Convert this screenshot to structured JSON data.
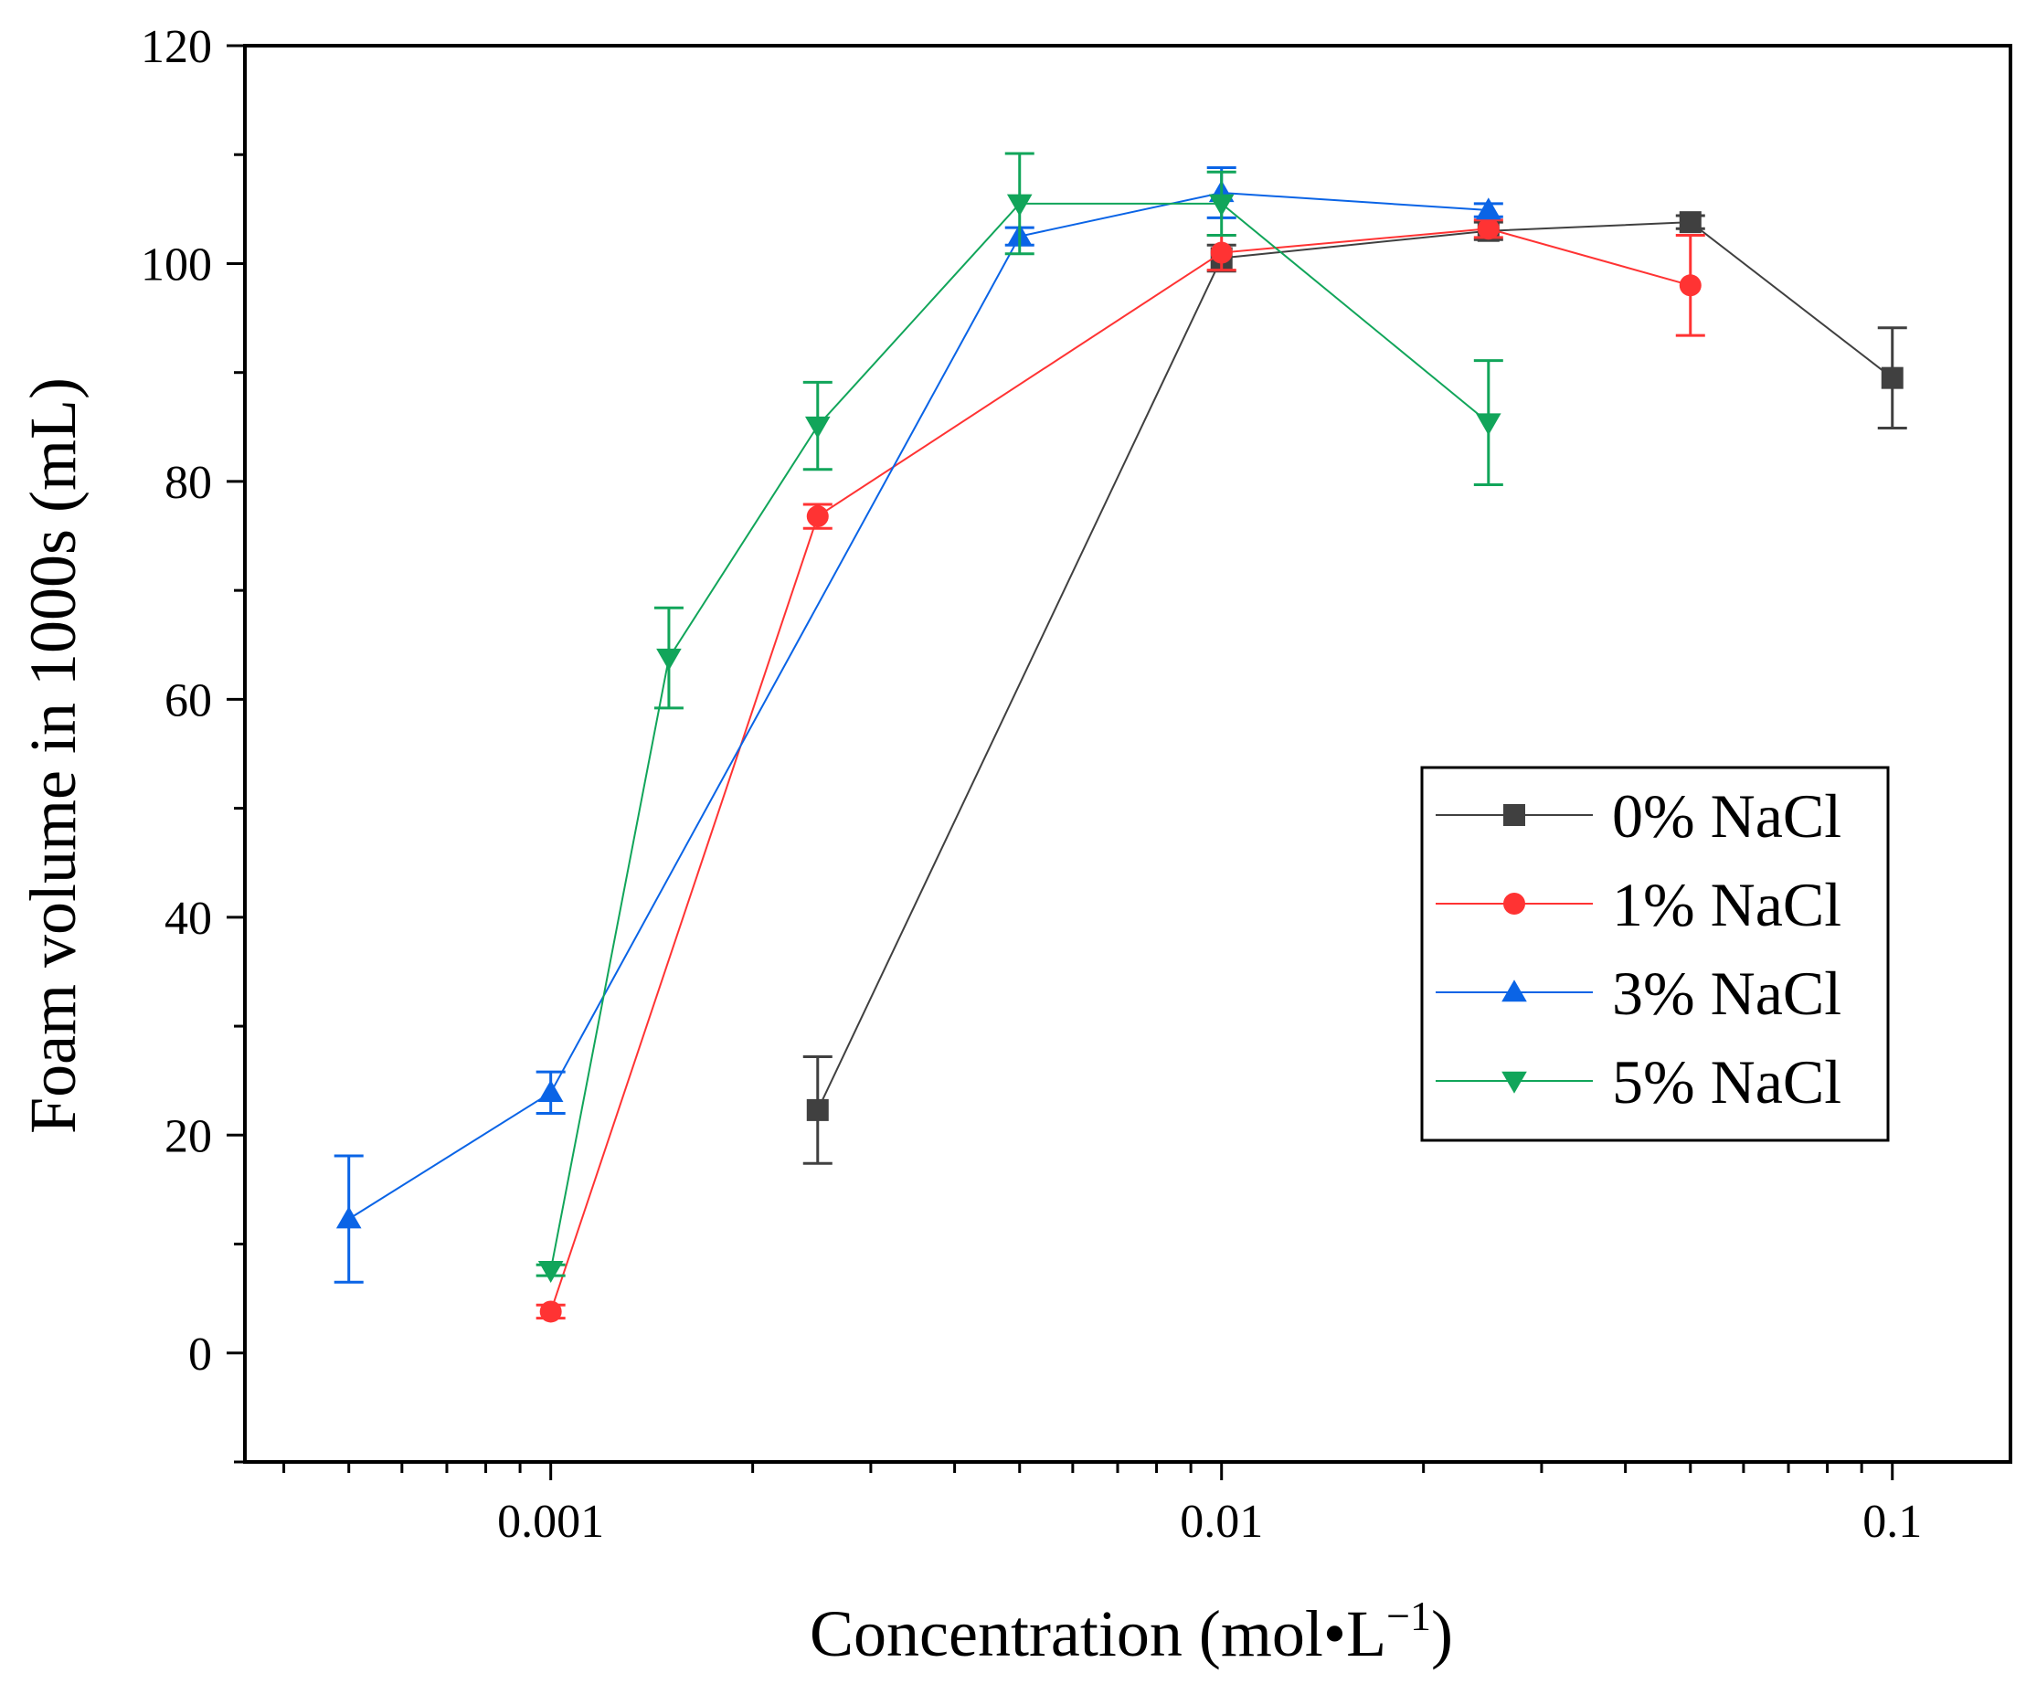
{
  "chart_data": {
    "type": "line",
    "title": "",
    "xlabel": "Concentration (mol•L",
    "xlabel_superscript": "−1",
    "xlabel_suffix": ")",
    "ylabel": "Foam volume in 1000s (mL)",
    "xscale": "log",
    "xlim": [
      0.00035,
      0.15
    ],
    "ylim": [
      -10,
      120
    ],
    "xticks": [
      {
        "value": 0.001,
        "label": "0.001"
      },
      {
        "value": 0.01,
        "label": "0.01"
      },
      {
        "value": 0.1,
        "label": "0.1"
      }
    ],
    "yticks": [
      {
        "value": 0,
        "label": "0"
      },
      {
        "value": 20,
        "label": "20"
      },
      {
        "value": 40,
        "label": "40"
      },
      {
        "value": 60,
        "label": "60"
      },
      {
        "value": 80,
        "label": "80"
      },
      {
        "value": 100,
        "label": "100"
      },
      {
        "value": 120,
        "label": "120"
      }
    ],
    "legend_position": "right-middle",
    "series": [
      {
        "name": "0% NaCl",
        "color": "#404040",
        "marker": "square",
        "x": [
          0.0025,
          0.01,
          0.025,
          0.05,
          0.1
        ],
        "y": [
          22.3,
          100.5,
          103.0,
          103.8,
          89.5
        ],
        "err": [
          4.9,
          1.2,
          0.8,
          0.6,
          4.6
        ]
      },
      {
        "name": "1% NaCl",
        "color": "#ff3333",
        "marker": "circle",
        "x": [
          0.001,
          0.0025,
          0.01,
          0.025,
          0.05
        ],
        "y": [
          3.8,
          76.8,
          101.0,
          103.2,
          98.0
        ],
        "err": [
          0.6,
          1.1,
          1.6,
          0.8,
          4.6
        ]
      },
      {
        "name": "3% NaCl",
        "color": "#0a64e6",
        "marker": "triangle-up",
        "x": [
          0.0005,
          0.001,
          0.005,
          0.01,
          0.025
        ],
        "y": [
          12.3,
          23.9,
          102.5,
          106.5,
          104.9
        ],
        "err": [
          5.8,
          1.9,
          0.8,
          2.3,
          0.6
        ]
      },
      {
        "name": "5% NaCl",
        "color": "#11a55a",
        "marker": "triangle-down",
        "x": [
          0.001,
          0.0015,
          0.0025,
          0.005,
          0.01,
          0.025
        ],
        "y": [
          7.6,
          63.8,
          85.1,
          105.5,
          105.5,
          85.4
        ],
        "err": [
          0.5,
          4.6,
          4.0,
          4.6,
          2.9,
          5.7
        ]
      }
    ]
  }
}
